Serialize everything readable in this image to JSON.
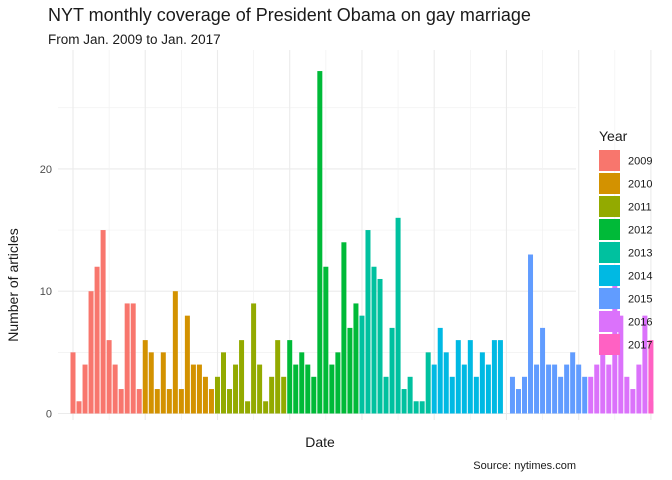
{
  "chart_data": {
    "type": "bar",
    "title": "NYT monthly coverage of President Obama on gay marriage",
    "subtitle": "From Jan. 2009 to Jan. 2017",
    "xlabel": "Date",
    "ylabel": "Number of articles",
    "caption": "Source: nytimes.com",
    "ylim": [
      0,
      29
    ],
    "yticks": [
      0,
      10,
      20
    ],
    "grid": true,
    "legend": {
      "title": "Year",
      "position": "right"
    },
    "series": [
      {
        "name": "2009",
        "color": "#F8766D",
        "start_month": 1,
        "values": [
          5,
          1,
          4,
          10,
          12,
          15,
          6,
          4,
          2,
          9,
          9,
          2
        ]
      },
      {
        "name": "2010",
        "color": "#D39200",
        "start_month": 1,
        "values": [
          6,
          5,
          2,
          5,
          2,
          10,
          2,
          8,
          4,
          4,
          3,
          2
        ]
      },
      {
        "name": "2011",
        "color": "#93AA00",
        "start_month": 1,
        "values": [
          3,
          5,
          2,
          4,
          6,
          1,
          9,
          4,
          1,
          3,
          6,
          3
        ]
      },
      {
        "name": "2012",
        "color": "#00BA38",
        "start_month": 1,
        "values": [
          6,
          4,
          5,
          4,
          3,
          28,
          12,
          4,
          5,
          14,
          7,
          9
        ]
      },
      {
        "name": "2013",
        "color": "#00C19F",
        "start_month": 1,
        "values": [
          8,
          15,
          12,
          11,
          3,
          7,
          16,
          2,
          3,
          1,
          1,
          5
        ]
      },
      {
        "name": "2014",
        "color": "#00B9E3",
        "start_month": 1,
        "values": [
          4,
          7,
          5,
          3,
          6,
          4,
          6,
          3,
          5,
          4,
          6,
          6
        ]
      },
      {
        "name": "2015",
        "color": "#619CFF",
        "start_month": 2,
        "values": [
          3,
          2,
          3,
          13,
          4,
          7,
          4,
          4,
          3,
          4,
          5,
          4,
          3
        ]
      },
      {
        "name": "2016",
        "color": "#DB72FB",
        "start_month": 3,
        "values": [
          3,
          4,
          5,
          4,
          11,
          8,
          3,
          2,
          4,
          8,
          1
        ]
      },
      {
        "name": "2017",
        "color": "#FF61C3",
        "start_month": 1,
        "values": [
          6
        ]
      }
    ]
  }
}
